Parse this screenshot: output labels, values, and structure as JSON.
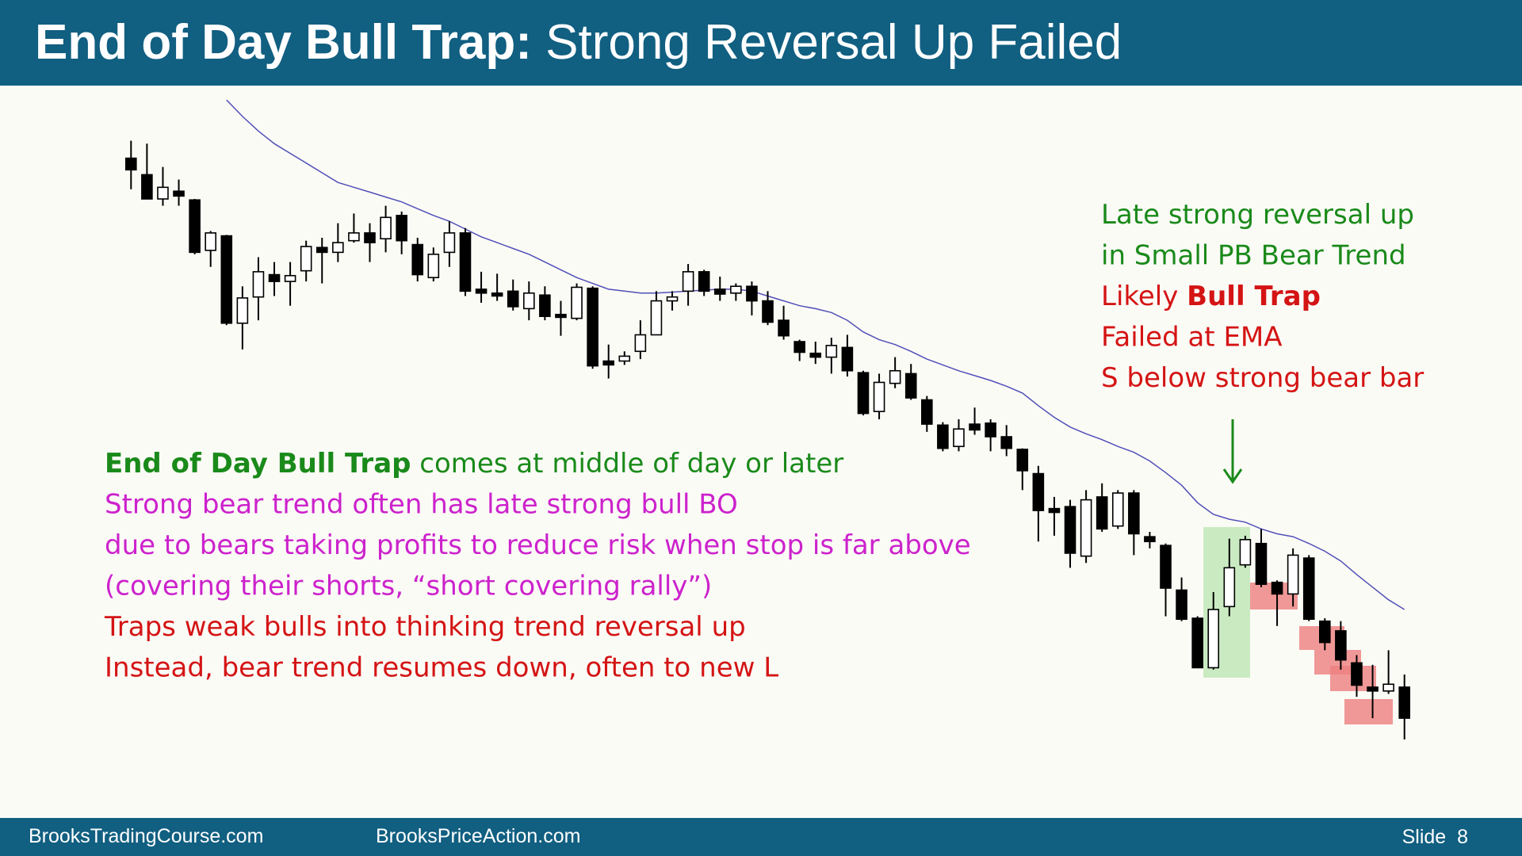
{
  "chart_data": {
    "type": "candlestick",
    "title": {
      "bold": "End of Day Bull Trap:",
      "rest": " Strong Reversal Up Failed"
    },
    "ylim": [
      18,
      900
    ],
    "up_color": "#ffffff",
    "down_color": "#000000",
    "ema_color": "#5050b8",
    "ohlc": [
      [
        737,
        755,
        705,
        725
      ],
      [
        720,
        752,
        695,
        695
      ],
      [
        695,
        728,
        688,
        707
      ],
      [
        703,
        715,
        688,
        698
      ],
      [
        694,
        695,
        638,
        640
      ],
      [
        642,
        662,
        625,
        660
      ],
      [
        657,
        658,
        565,
        567
      ],
      [
        567,
        605,
        540,
        593
      ],
      [
        594,
        635,
        570,
        620
      ],
      [
        617,
        630,
        595,
        610
      ],
      [
        610,
        630,
        585,
        616
      ],
      [
        621,
        652,
        610,
        646
      ],
      [
        645,
        655,
        608,
        640
      ],
      [
        640,
        670,
        630,
        650
      ],
      [
        652,
        680,
        650,
        660
      ],
      [
        660,
        670,
        630,
        650
      ],
      [
        654,
        688,
        640,
        676
      ],
      [
        678,
        682,
        638,
        652
      ],
      [
        648,
        655,
        610,
        617
      ],
      [
        614,
        645,
        610,
        638
      ],
      [
        640,
        672,
        625,
        660
      ],
      [
        660,
        665,
        595,
        600
      ],
      [
        602,
        620,
        588,
        598
      ],
      [
        598,
        618,
        590,
        595
      ],
      [
        600,
        612,
        580,
        584
      ],
      [
        582,
        610,
        570,
        598
      ],
      [
        596,
        605,
        570,
        574
      ],
      [
        576,
        590,
        554,
        573
      ],
      [
        572,
        608,
        570,
        604
      ],
      [
        603,
        605,
        520,
        523
      ],
      [
        528,
        545,
        510,
        524
      ],
      [
        528,
        538,
        524,
        533
      ],
      [
        538,
        570,
        530,
        555
      ],
      [
        555,
        600,
        555,
        590
      ],
      [
        590,
        600,
        580,
        594
      ],
      [
        600,
        628,
        585,
        620
      ],
      [
        620,
        622,
        595,
        600
      ],
      [
        602,
        615,
        590,
        597
      ],
      [
        598,
        608,
        590,
        605
      ],
      [
        605,
        610,
        575,
        590
      ],
      [
        590,
        600,
        565,
        568
      ],
      [
        570,
        585,
        550,
        554
      ],
      [
        548,
        550,
        528,
        537
      ],
      [
        536,
        548,
        525,
        532
      ],
      [
        532,
        552,
        515,
        544
      ],
      [
        542,
        555,
        512,
        518
      ],
      [
        516,
        518,
        472,
        474
      ],
      [
        476,
        515,
        468,
        506
      ],
      [
        505,
        532,
        500,
        518
      ],
      [
        515,
        525,
        488,
        490
      ],
      [
        488,
        492,
        455,
        463
      ],
      [
        462,
        465,
        435,
        438
      ],
      [
        440,
        468,
        435,
        458
      ],
      [
        463,
        480,
        452,
        457
      ],
      [
        464,
        468,
        435,
        450
      ],
      [
        450,
        462,
        430,
        438
      ],
      [
        437,
        438,
        395,
        415
      ],
      [
        412,
        420,
        342,
        374
      ],
      [
        376,
        388,
        348,
        372
      ],
      [
        378,
        385,
        315,
        330
      ],
      [
        327,
        395,
        320,
        385
      ],
      [
        388,
        402,
        352,
        355
      ],
      [
        358,
        395,
        355,
        392
      ],
      [
        392,
        395,
        328,
        350
      ],
      [
        347,
        352,
        335,
        342
      ],
      [
        338,
        340,
        265,
        294
      ],
      [
        292,
        305,
        260,
        262
      ],
      [
        263,
        265,
        212,
        212
      ],
      [
        212,
        290,
        210,
        272
      ],
      [
        275,
        345,
        265,
        315
      ],
      [
        318,
        348,
        315,
        344
      ],
      [
        340,
        355,
        295,
        298
      ],
      [
        300,
        302,
        255,
        288
      ],
      [
        288,
        335,
        275,
        328
      ],
      [
        325,
        328,
        260,
        262
      ],
      [
        260,
        263,
        230,
        238
      ],
      [
        250,
        260,
        210,
        220
      ],
      [
        217,
        225,
        182,
        194
      ],
      [
        192,
        215,
        160,
        188
      ],
      [
        188,
        230,
        185,
        195
      ],
      [
        192,
        205,
        138,
        160
      ]
    ],
    "ema": [
      null,
      null,
      null,
      null,
      null,
      null,
      797,
      780,
      765,
      752,
      742,
      732,
      722,
      712,
      707,
      702,
      697,
      692,
      685,
      678,
      672,
      664,
      656,
      650,
      644,
      638,
      630,
      622,
      614,
      608,
      602,
      600,
      598,
      598,
      599,
      600,
      601,
      602,
      602,
      600,
      595,
      590,
      585,
      582,
      578,
      570,
      558,
      550,
      545,
      538,
      530,
      524,
      518,
      513,
      508,
      502,
      495,
      482,
      470,
      460,
      453,
      447,
      440,
      434,
      425,
      413,
      400,
      382,
      370,
      365,
      362,
      355,
      350,
      347,
      340,
      332,
      322,
      308,
      295,
      282,
      272
    ],
    "annotations_right": [
      [
        {
          "text": "Late strong reversal up",
          "color": "#1a8a1a"
        }
      ],
      [
        {
          "text": "in Small PB Bear Trend",
          "color": "#1a8a1a"
        }
      ],
      [
        {
          "text": "Likely ",
          "color": "#d41414"
        },
        {
          "text": "Bull Trap",
          "color": "#d41414",
          "bold": true
        }
      ],
      [
        {
          "text": "Failed at EMA",
          "color": "#d41414"
        }
      ],
      [
        {
          "text": "S below strong bear bar",
          "color": "#d41414"
        }
      ]
    ],
    "annotations_left": [
      [
        {
          "text": "End of Day Bull Trap",
          "color": "#1a8a1a",
          "bold": true
        },
        {
          "text": " comes at middle of day or later",
          "color": "#1a8a1a"
        }
      ],
      [
        {
          "text": "Strong bear trend often has late strong bull BO",
          "color": "#cc22cc"
        }
      ],
      [
        {
          "text": "due to bears taking profits to reduce risk when stop is far above",
          "color": "#cc22cc"
        }
      ],
      [
        {
          "text": "(covering their shorts, “short covering rally”)",
          "color": "#cc22cc"
        }
      ],
      [
        {
          "text": "Traps weak bulls into thinking trend reversal up",
          "color": "#d41414"
        }
      ],
      [
        {
          "text": "Instead, bear trend resumes down, often to new L",
          "color": "#d41414"
        }
      ]
    ]
  },
  "footer": {
    "left": "BrooksTradingCourse.com",
    "middle": "BrooksPriceAction.com",
    "slide": "Slide  8"
  }
}
